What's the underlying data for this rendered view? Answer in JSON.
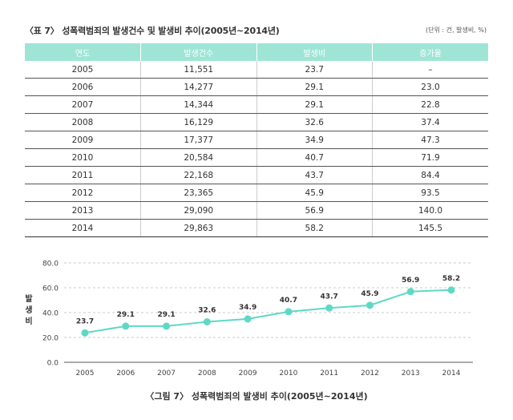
{
  "table_title": "〈표 7〉 성폭력범죄의 발생건수 및 발생비 추이(2005년~2014년)",
  "unit_note": "(단위 : 건, 발생비, %)",
  "table": {
    "headers": [
      "연도",
      "발생건수",
      "발생비",
      "증가율"
    ],
    "rows": [
      [
        "2005",
        "11,551",
        "23.7",
        "–"
      ],
      [
        "2006",
        "14,277",
        "29.1",
        "23.0"
      ],
      [
        "2007",
        "14,344",
        "29.1",
        "22.8"
      ],
      [
        "2008",
        "16,129",
        "32.6",
        "37.4"
      ],
      [
        "2009",
        "17,377",
        "34.9",
        "47.3"
      ],
      [
        "2010",
        "20,584",
        "40.7",
        "71.9"
      ],
      [
        "2011",
        "22,168",
        "43.7",
        "84.4"
      ],
      [
        "2012",
        "23,365",
        "45.9",
        "93.5"
      ],
      [
        "2013",
        "29,090",
        "56.9",
        "140.0"
      ],
      [
        "2014",
        "29,863",
        "58.2",
        "145.5"
      ]
    ]
  },
  "figure_caption": "〈그림 7〉 성폭력범죄의 발생비 추이(2005년~2014년)",
  "colors": {
    "accent": "#5ed9c4",
    "header_bg": "#9fe5d6"
  },
  "chart_data": {
    "type": "line",
    "x": [
      "2005",
      "2006",
      "2007",
      "2008",
      "2009",
      "2010",
      "2011",
      "2012",
      "2013",
      "2014"
    ],
    "series": [
      {
        "values": [
          23.7,
          29.1,
          29.1,
          32.6,
          34.9,
          40.7,
          43.7,
          45.9,
          56.9,
          58.2
        ]
      }
    ],
    "data_labels": [
      "23.7",
      "29.1",
      "29.1",
      "32.6",
      "34.9",
      "40.7",
      "43.7",
      "45.9",
      "56.9",
      "58.2"
    ],
    "ylabel": "발생비",
    "ylim": [
      0,
      80
    ],
    "yticks": [
      "0.0",
      "20.0",
      "40.0",
      "60.0",
      "80.0"
    ],
    "grid": true,
    "title": ""
  }
}
